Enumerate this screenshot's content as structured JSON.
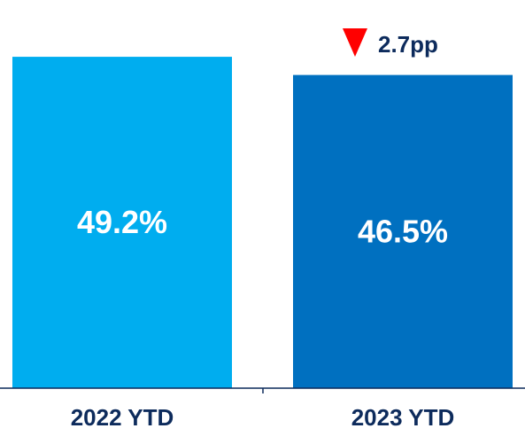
{
  "chart_data": {
    "type": "bar",
    "categories": [
      "2022 YTD",
      "2023 YTD"
    ],
    "values": [
      49.2,
      46.5
    ],
    "data_labels": [
      "49.2%",
      "46.5%"
    ],
    "colors": [
      "#00adef",
      "#0070c0"
    ],
    "axis_color": "#0d2b5c",
    "title": "",
    "xlabel": "",
    "ylabel": "",
    "ylim": [
      0,
      50
    ],
    "grid": false,
    "change": {
      "label": "2.7pp",
      "direction": "down",
      "icon": "down-triangle-icon",
      "icon_color": "#ff0000"
    }
  }
}
